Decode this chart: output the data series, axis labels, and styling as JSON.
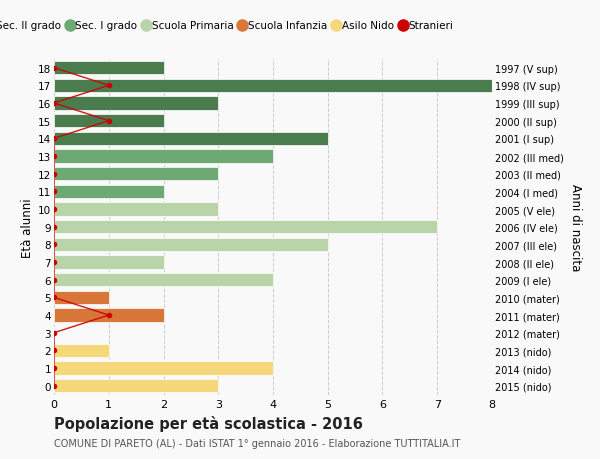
{
  "ages": [
    18,
    17,
    16,
    15,
    14,
    13,
    12,
    11,
    10,
    9,
    8,
    7,
    6,
    5,
    4,
    3,
    2,
    1,
    0
  ],
  "right_labels": [
    "1997 (V sup)",
    "1998 (IV sup)",
    "1999 (III sup)",
    "2000 (II sup)",
    "2001 (I sup)",
    "2002 (III med)",
    "2003 (II med)",
    "2004 (I med)",
    "2005 (V ele)",
    "2006 (IV ele)",
    "2007 (III ele)",
    "2008 (II ele)",
    "2009 (I ele)",
    "2010 (mater)",
    "2011 (mater)",
    "2012 (mater)",
    "2013 (nido)",
    "2014 (nido)",
    "2015 (nido)"
  ],
  "bars": [
    {
      "age": 18,
      "value": 2,
      "color": "#4a7c4e"
    },
    {
      "age": 17,
      "value": 8,
      "color": "#4a7c4e"
    },
    {
      "age": 16,
      "value": 3,
      "color": "#4a7c4e"
    },
    {
      "age": 15,
      "value": 2,
      "color": "#4a7c4e"
    },
    {
      "age": 14,
      "value": 5,
      "color": "#4a7c4e"
    },
    {
      "age": 13,
      "value": 4,
      "color": "#6ea872"
    },
    {
      "age": 12,
      "value": 3,
      "color": "#6ea872"
    },
    {
      "age": 11,
      "value": 2,
      "color": "#6ea872"
    },
    {
      "age": 10,
      "value": 3,
      "color": "#b8d4a8"
    },
    {
      "age": 9,
      "value": 7,
      "color": "#b8d4a8"
    },
    {
      "age": 8,
      "value": 5,
      "color": "#b8d4a8"
    },
    {
      "age": 7,
      "value": 2,
      "color": "#b8d4a8"
    },
    {
      "age": 6,
      "value": 4,
      "color": "#b8d4a8"
    },
    {
      "age": 5,
      "value": 1,
      "color": "#d9773a"
    },
    {
      "age": 4,
      "value": 2,
      "color": "#d9773a"
    },
    {
      "age": 3,
      "value": 0,
      "color": "#d9773a"
    },
    {
      "age": 2,
      "value": 1,
      "color": "#f5d87a"
    },
    {
      "age": 1,
      "value": 4,
      "color": "#f5d87a"
    },
    {
      "age": 0,
      "value": 3,
      "color": "#f5d87a"
    }
  ],
  "stranieri": [
    {
      "age": 18,
      "value": 0
    },
    {
      "age": 17,
      "value": 1
    },
    {
      "age": 16,
      "value": 0
    },
    {
      "age": 15,
      "value": 1
    },
    {
      "age": 14,
      "value": 0
    },
    {
      "age": 13,
      "value": 0
    },
    {
      "age": 12,
      "value": 0
    },
    {
      "age": 11,
      "value": 0
    },
    {
      "age": 10,
      "value": 0
    },
    {
      "age": 9,
      "value": 0
    },
    {
      "age": 8,
      "value": 0
    },
    {
      "age": 7,
      "value": 0
    },
    {
      "age": 6,
      "value": 0
    },
    {
      "age": 5,
      "value": 0
    },
    {
      "age": 4,
      "value": 1
    },
    {
      "age": 3,
      "value": 0
    },
    {
      "age": 2,
      "value": 0
    },
    {
      "age": 1,
      "value": 0
    },
    {
      "age": 0,
      "value": 0
    }
  ],
  "xlim": [
    0,
    8
  ],
  "ylim": [
    -0.5,
    18.5
  ],
  "ylabel": "Età alunni",
  "right_ylabel": "Anni di nascita",
  "title": "Popolazione per età scolastica - 2016",
  "subtitle": "COMUNE DI PARETO (AL) - Dati ISTAT 1° gennaio 2016 - Elaborazione TUTTITALIA.IT",
  "legend_items": [
    {
      "label": "Sec. II grado",
      "color": "#4a7c4e"
    },
    {
      "label": "Sec. I grado",
      "color": "#6ea872"
    },
    {
      "label": "Scuola Primaria",
      "color": "#b8d4a8"
    },
    {
      "label": "Scuola Infanzia",
      "color": "#d9773a"
    },
    {
      "label": "Asilo Nido",
      "color": "#f5d87a"
    },
    {
      "label": "Stranieri",
      "color": "#cc0000"
    }
  ],
  "bg_color": "#f9f9f9",
  "bar_height": 0.75,
  "stranieri_color": "#cc0000",
  "grid_color": "#cccccc"
}
